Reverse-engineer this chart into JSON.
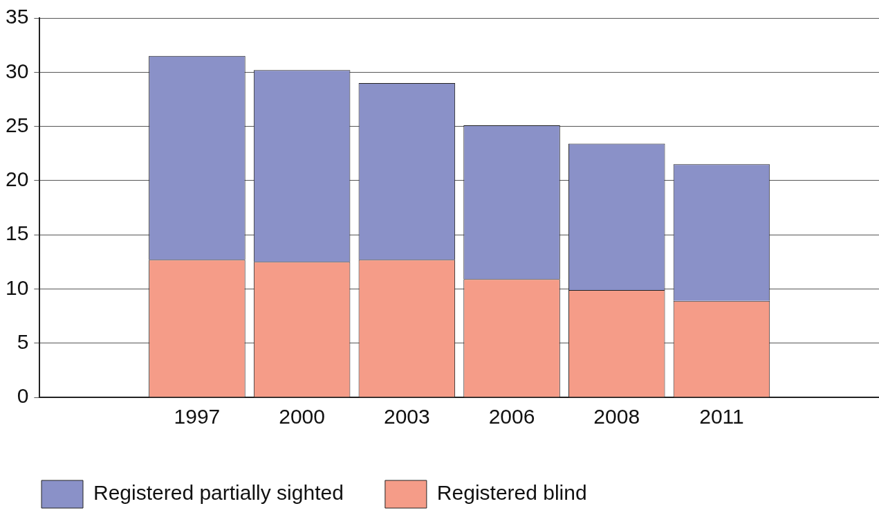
{
  "chart_data": {
    "type": "bar",
    "stacked": true,
    "categories": [
      null,
      "1997",
      "2000",
      "2003",
      "2006",
      "2008",
      "2011",
      null
    ],
    "series": [
      {
        "name": "Registered blind",
        "color": "#f59c88",
        "values": [
          null,
          12.7,
          12.5,
          12.7,
          10.9,
          9.9,
          8.9,
          null
        ]
      },
      {
        "name": "Registered partially sighted",
        "color": "#8a91c8",
        "values": [
          null,
          18.8,
          17.7,
          16.3,
          14.2,
          13.5,
          12.6,
          null
        ]
      }
    ],
    "ylim": [
      0,
      35
    ],
    "yticks": [
      0,
      5,
      10,
      15,
      20,
      25,
      30,
      35
    ],
    "grid": "y",
    "legend": "bottom"
  }
}
